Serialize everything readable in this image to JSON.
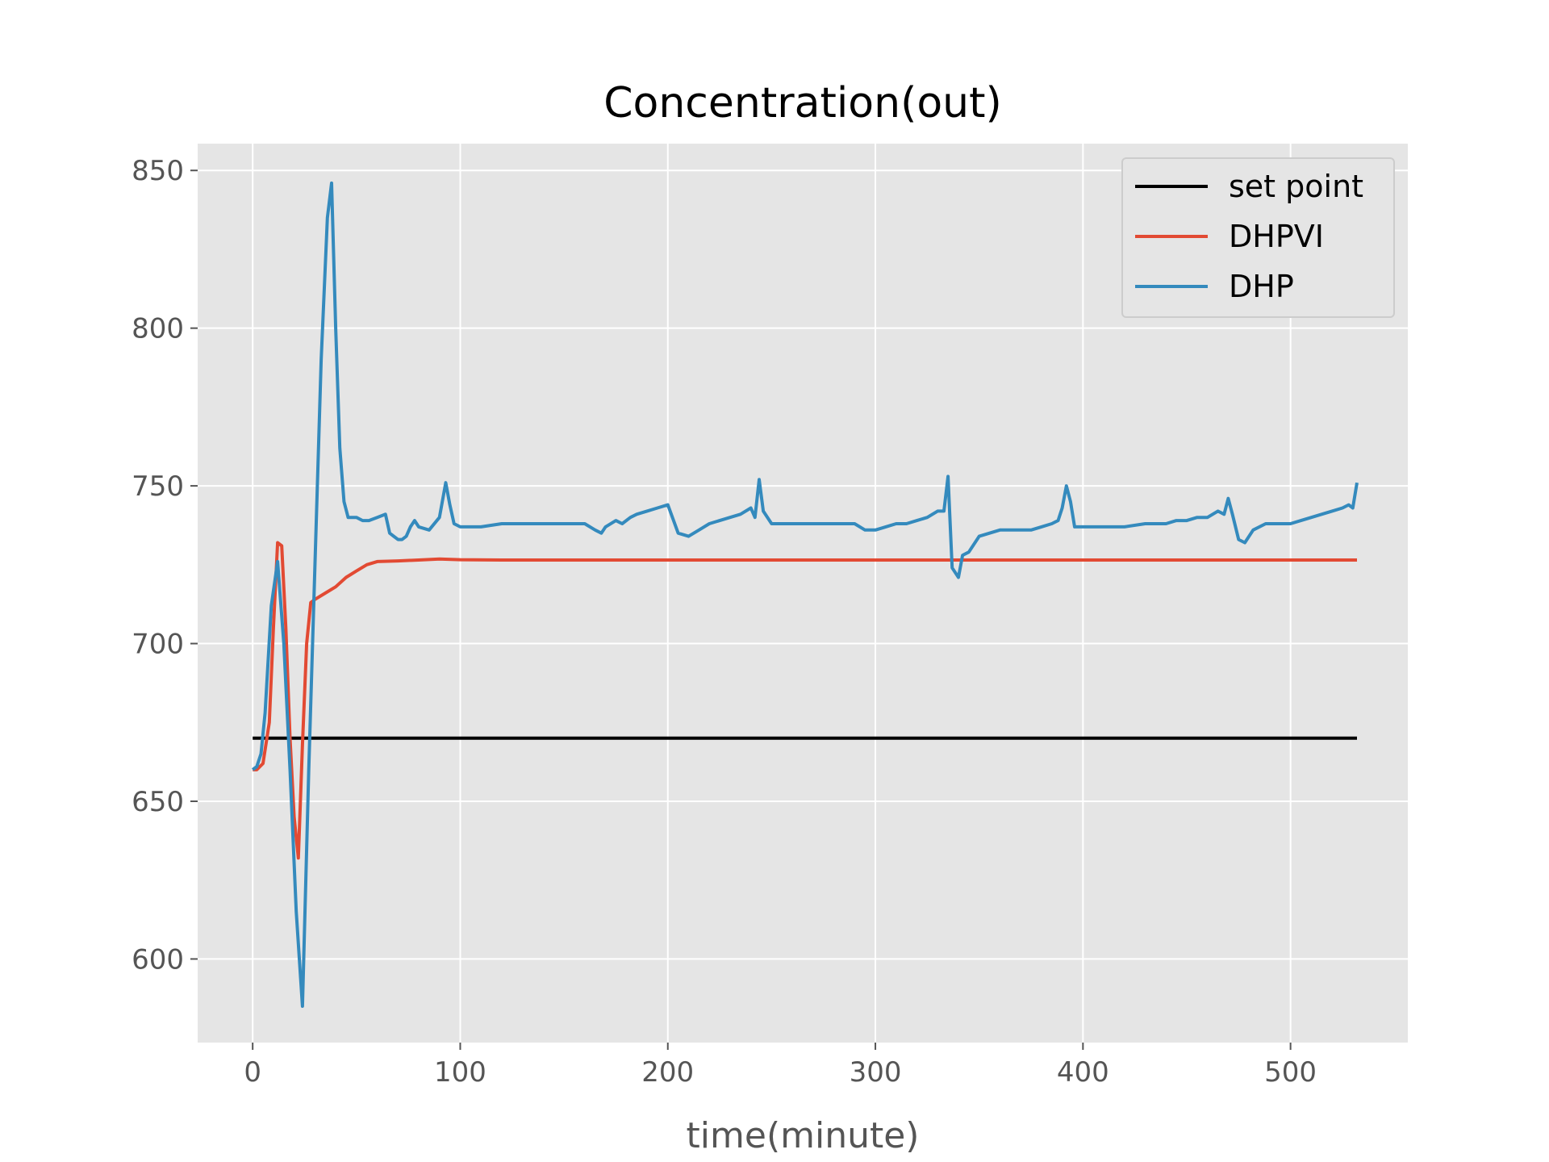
{
  "chart_data": {
    "type": "line",
    "title": "Concentration(out)",
    "xlabel": "time(minute)",
    "ylabel": "",
    "xlim": [
      -26.5,
      556.5
    ],
    "ylim": [
      573.5,
      858.5
    ],
    "xticks": [
      0,
      100,
      200,
      300,
      400,
      500
    ],
    "yticks": [
      600,
      650,
      700,
      750,
      800,
      850
    ],
    "grid": true,
    "legend_position": "top-right",
    "colors": {
      "background": "#e5e5e5",
      "grid": "#ffffff",
      "tick_text": "#555555"
    },
    "series": [
      {
        "name": "set point",
        "color": "#000000",
        "x": [
          0,
          532
        ],
        "y": [
          670,
          670
        ]
      },
      {
        "name": "DHPVI",
        "color": "#e24a33",
        "x": [
          0,
          2,
          5,
          8,
          10,
          12,
          14,
          16,
          18,
          20,
          22,
          24,
          26,
          28,
          30,
          35,
          40,
          45,
          50,
          55,
          60,
          70,
          80,
          90,
          100,
          120,
          150,
          200,
          250,
          300,
          350,
          400,
          450,
          500,
          532
        ],
        "y": [
          660,
          660,
          662,
          675,
          705,
          732,
          731,
          705,
          670,
          645,
          632,
          668,
          700,
          713,
          714,
          716,
          718,
          721,
          723,
          725,
          726,
          726.2,
          726.5,
          726.8,
          726.6,
          726.5,
          726.5,
          726.5,
          726.5,
          726.5,
          726.5,
          726.5,
          726.5,
          726.5,
          726.5
        ]
      },
      {
        "name": "DHP",
        "color": "#348abd",
        "x": [
          0,
          2,
          4,
          6,
          9,
          12,
          15,
          18,
          21,
          24,
          27,
          30,
          33,
          36,
          38,
          40,
          42,
          44,
          46,
          48,
          50,
          53,
          56,
          60,
          64,
          66,
          68,
          70,
          72,
          74,
          76,
          78,
          80,
          85,
          90,
          93,
          95,
          97,
          100,
          110,
          120,
          130,
          140,
          150,
          155,
          160,
          165,
          168,
          170,
          175,
          178,
          182,
          185,
          190,
          195,
          200,
          205,
          210,
          215,
          220,
          230,
          235,
          240,
          242,
          244,
          246,
          250,
          255,
          260,
          270,
          280,
          285,
          290,
          295,
          300,
          305,
          310,
          315,
          320,
          325,
          330,
          333,
          335,
          337,
          340,
          342,
          345,
          350,
          360,
          365,
          370,
          375,
          380,
          385,
          388,
          390,
          392,
          394,
          396,
          400,
          410,
          420,
          430,
          440,
          445,
          450,
          455,
          460,
          465,
          468,
          470,
          472,
          475,
          478,
          482,
          488,
          495,
          500,
          505,
          510,
          515,
          520,
          525,
          528,
          530,
          532
        ],
        "y": [
          660,
          661,
          665,
          678,
          712,
          726,
          700,
          660,
          615,
          585,
          660,
          725,
          790,
          835,
          846,
          800,
          762,
          745,
          740,
          740,
          740,
          739,
          739,
          740,
          741,
          735,
          734,
          733,
          733,
          734,
          737,
          739,
          737,
          736,
          740,
          751,
          744,
          738,
          737,
          737,
          738,
          738,
          738,
          738,
          738,
          738,
          736,
          735,
          737,
          739,
          738,
          740,
          741,
          742,
          743,
          744,
          735,
          734,
          736,
          738,
          740,
          741,
          743,
          740,
          752,
          742,
          738,
          738,
          738,
          738,
          738,
          738,
          738,
          736,
          736,
          737,
          738,
          738,
          739,
          740,
          742,
          742,
          753,
          724,
          721,
          728,
          729,
          734,
          736,
          736,
          736,
          736,
          737,
          738,
          739,
          743,
          750,
          745,
          737,
          737,
          737,
          737,
          738,
          738,
          739,
          739,
          740,
          740,
          742,
          741,
          746,
          741,
          733,
          732,
          736,
          738,
          738,
          738,
          739,
          740,
          741,
          742,
          743,
          744,
          743,
          751
        ]
      }
    ]
  }
}
